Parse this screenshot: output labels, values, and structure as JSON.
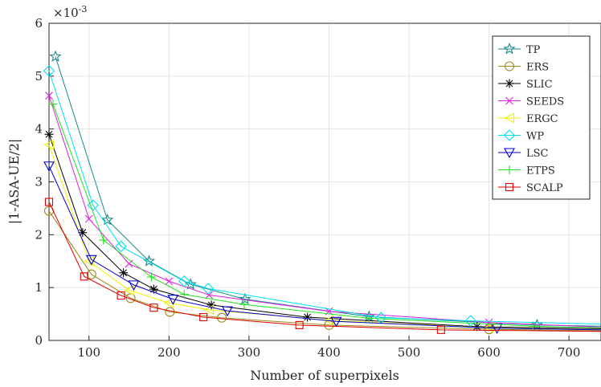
{
  "chart_data": {
    "type": "line",
    "xlabel": "Number of superpixels",
    "ylabel": "|1-ASA-UE/2|",
    "exponent_label": "×10",
    "exponent_power": "-3",
    "xlim": [
      50,
      740
    ],
    "ylim": [
      0,
      6
    ],
    "x_ticks": [
      "100",
      "200",
      "300",
      "400",
      "500",
      "600",
      "700"
    ],
    "y_ticks": [
      "0",
      "1",
      "2",
      "3",
      "4",
      "5",
      "6"
    ],
    "grid": true,
    "legend_position": "top-right",
    "series": [
      {
        "name": "TP",
        "color": "#1a8a8a",
        "marker": "star",
        "x": [
          58,
          123,
          175,
          227,
          295,
          450,
          660,
          740
        ],
        "y": [
          5.37,
          2.28,
          1.5,
          1.06,
          0.78,
          0.45,
          0.29,
          0.27
        ]
      },
      {
        "name": "ERS",
        "color": "#a08a1a",
        "marker": "circle",
        "x": [
          50,
          103,
          152,
          201,
          266,
          400,
          600,
          740
        ],
        "y": [
          2.45,
          1.25,
          0.8,
          0.54,
          0.43,
          0.29,
          0.21,
          0.18
        ]
      },
      {
        "name": "SLIC",
        "color": "#000000",
        "marker": "asterisk",
        "x": [
          50,
          92,
          143,
          181,
          253,
          373,
          585,
          740
        ],
        "y": [
          3.9,
          2.04,
          1.28,
          0.97,
          0.67,
          0.44,
          0.26,
          0.22
        ]
      },
      {
        "name": "SEEDS",
        "color": "#e020e0",
        "marker": "x",
        "x": [
          50,
          100,
          150,
          200,
          250,
          400,
          600,
          740
        ],
        "y": [
          4.63,
          2.3,
          1.45,
          1.12,
          0.86,
          0.55,
          0.34,
          0.25
        ]
      },
      {
        "name": "ERGC",
        "color": "#f0f000",
        "marker": "triangle-left",
        "x": [
          50,
          100,
          150,
          200,
          250,
          400,
          600,
          740
        ],
        "y": [
          3.7,
          1.5,
          0.95,
          0.71,
          0.58,
          0.38,
          0.24,
          0.2
        ]
      },
      {
        "name": "WP",
        "color": "#00e0ee",
        "marker": "diamond",
        "x": [
          50,
          105,
          140,
          219,
          249,
          465,
          577,
          740
        ],
        "y": [
          5.1,
          2.56,
          1.78,
          1.12,
          0.98,
          0.43,
          0.37,
          0.31
        ]
      },
      {
        "name": "LSC",
        "color": "#0000d0",
        "marker": "triangle-down",
        "x": [
          50,
          103,
          156,
          205,
          273,
          409,
          610,
          740
        ],
        "y": [
          3.3,
          1.53,
          1.05,
          0.78,
          0.56,
          0.36,
          0.23,
          0.2
        ]
      },
      {
        "name": "ETPS",
        "color": "#20e020",
        "marker": "plus",
        "x": [
          55,
          118,
          178,
          219,
          294,
          450,
          655,
          740
        ],
        "y": [
          4.47,
          1.9,
          1.2,
          0.87,
          0.68,
          0.42,
          0.27,
          0.24
        ]
      },
      {
        "name": "SCALP",
        "color": "#e00000",
        "marker": "square",
        "x": [
          50,
          94,
          140,
          181,
          243,
          363,
          540,
          740
        ],
        "y": [
          2.62,
          1.21,
          0.85,
          0.62,
          0.44,
          0.29,
          0.2,
          0.17
        ]
      }
    ]
  }
}
